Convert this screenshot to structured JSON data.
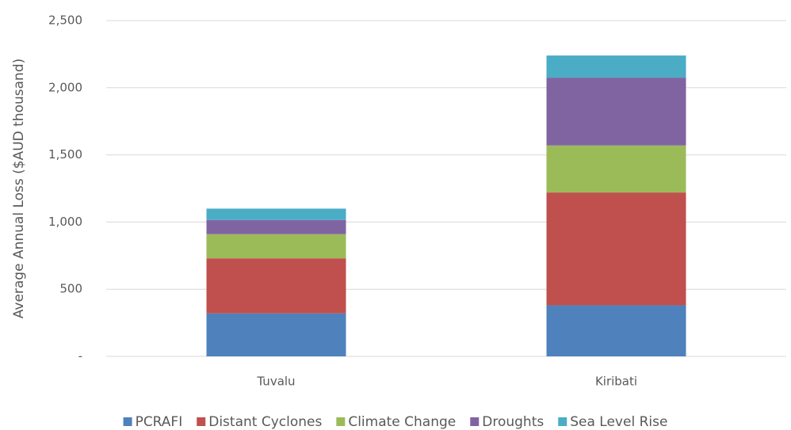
{
  "chart_data": {
    "type": "stacked-bar",
    "y_label": "Average Annual Loss ($AUD thousand)",
    "categories": [
      "Tuvalu",
      "Kiribati"
    ],
    "series": [
      {
        "name": "PCRAFI",
        "color": "#4f81bd",
        "values": [
          320,
          380
        ]
      },
      {
        "name": "Distant Cyclones",
        "color": "#c0504d",
        "values": [
          410,
          840
        ]
      },
      {
        "name": "Climate Change",
        "color": "#9bbb59",
        "values": [
          180,
          350
        ]
      },
      {
        "name": "Droughts",
        "color": "#8064a2",
        "values": [
          105,
          505
        ]
      },
      {
        "name": "Sea Level Rise",
        "color": "#4bacc6",
        "values": [
          85,
          165
        ]
      }
    ],
    "ylim": [
      0,
      2500
    ],
    "yticks": [
      {
        "value": 0,
        "label": "-"
      },
      500,
      {
        "value": 1000,
        "label": "1,000"
      },
      {
        "value": 1500,
        "label": "1,500"
      },
      {
        "value": 2000,
        "label": "2,000"
      },
      {
        "value": 2500,
        "label": "2,500"
      }
    ],
    "grid": true,
    "legend": "bottom"
  }
}
